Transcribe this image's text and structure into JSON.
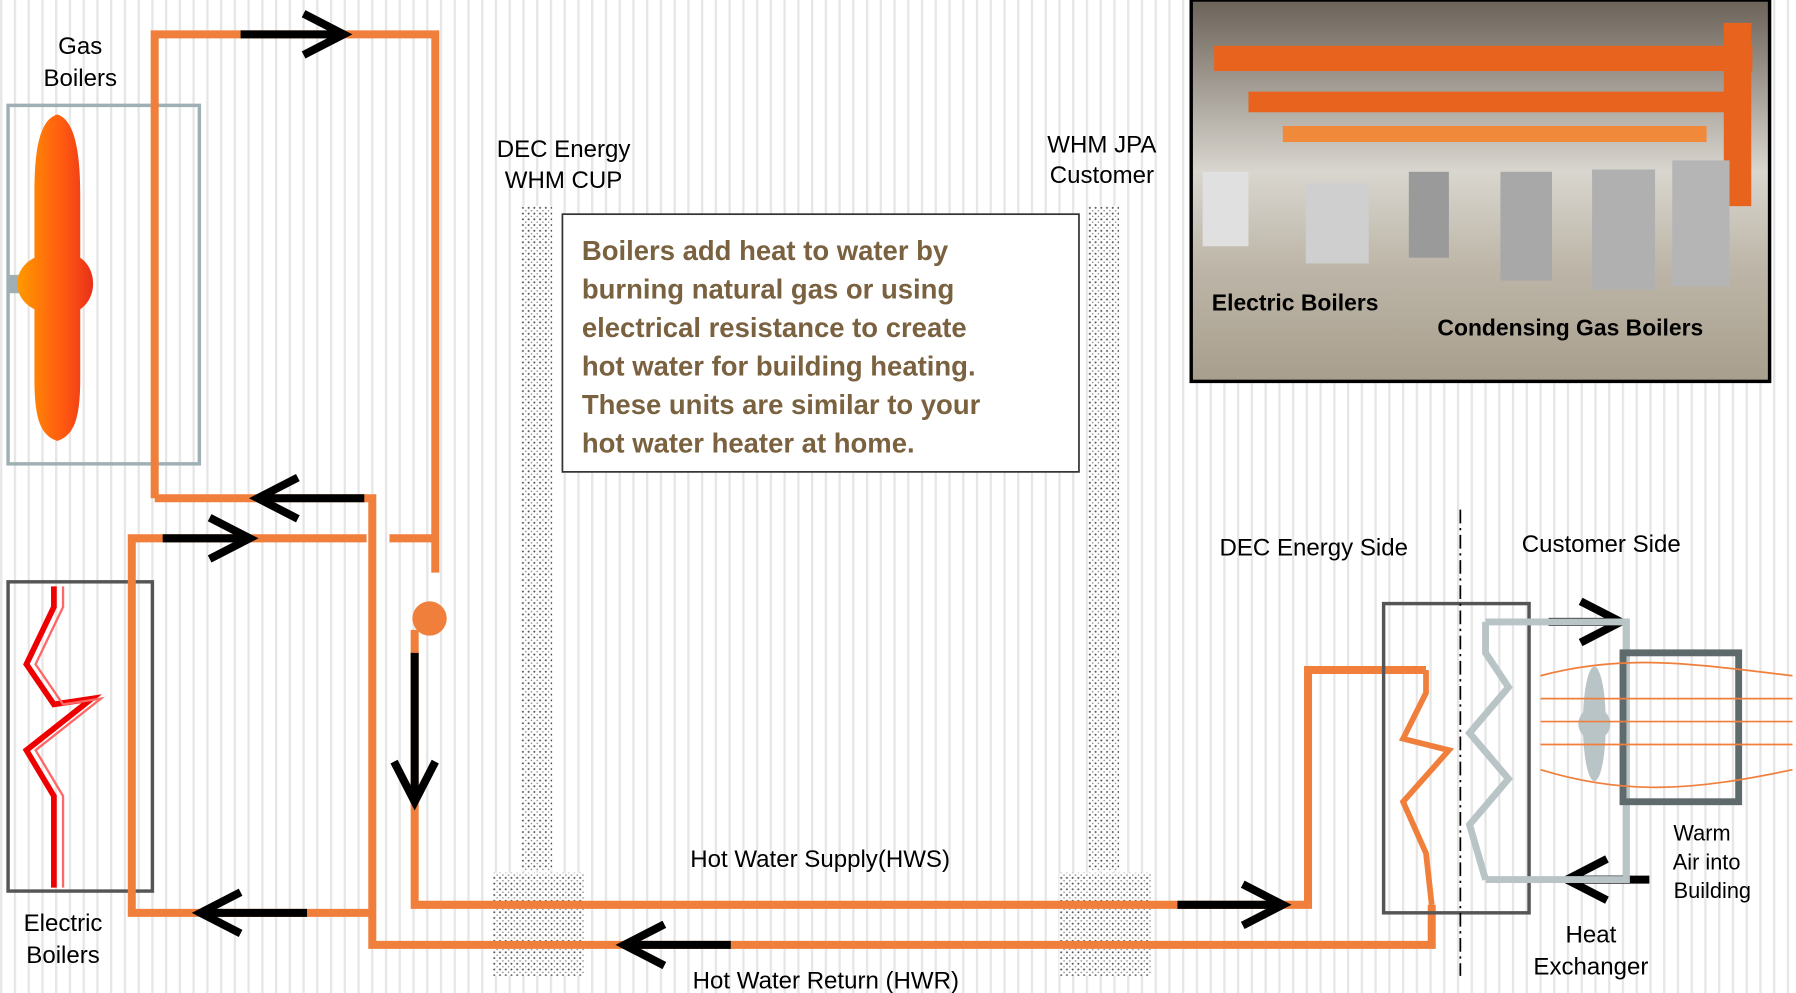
{
  "diagram": {
    "gas_boilers": [
      "Gas",
      "Boilers"
    ],
    "electric_boilers": [
      "Electric",
      "Boilers"
    ],
    "dec_cup": [
      "DEC Energy",
      "WHM CUP"
    ],
    "whm_jpa": [
      "WHM JPA",
      "Customer"
    ],
    "note": [
      "Boilers add heat to water by",
      "burning natural gas or using",
      "electrical resistance to create",
      "hot water for building heating.",
      "These units are similar to your",
      "hot water heater at home."
    ],
    "hws": "Hot Water Supply(HWS)",
    "hwr": "Hot Water Return (HWR)",
    "dec_side": "DEC Energy Side",
    "customer_side": "Customer Side",
    "warm_air": [
      "Warm",
      "Air into",
      "Building"
    ],
    "heat_exchanger": [
      "Heat",
      "Exchanger"
    ]
  },
  "photo": {
    "left_label": "Electric Boilers",
    "right_label": "Condensing Gas Boilers"
  }
}
